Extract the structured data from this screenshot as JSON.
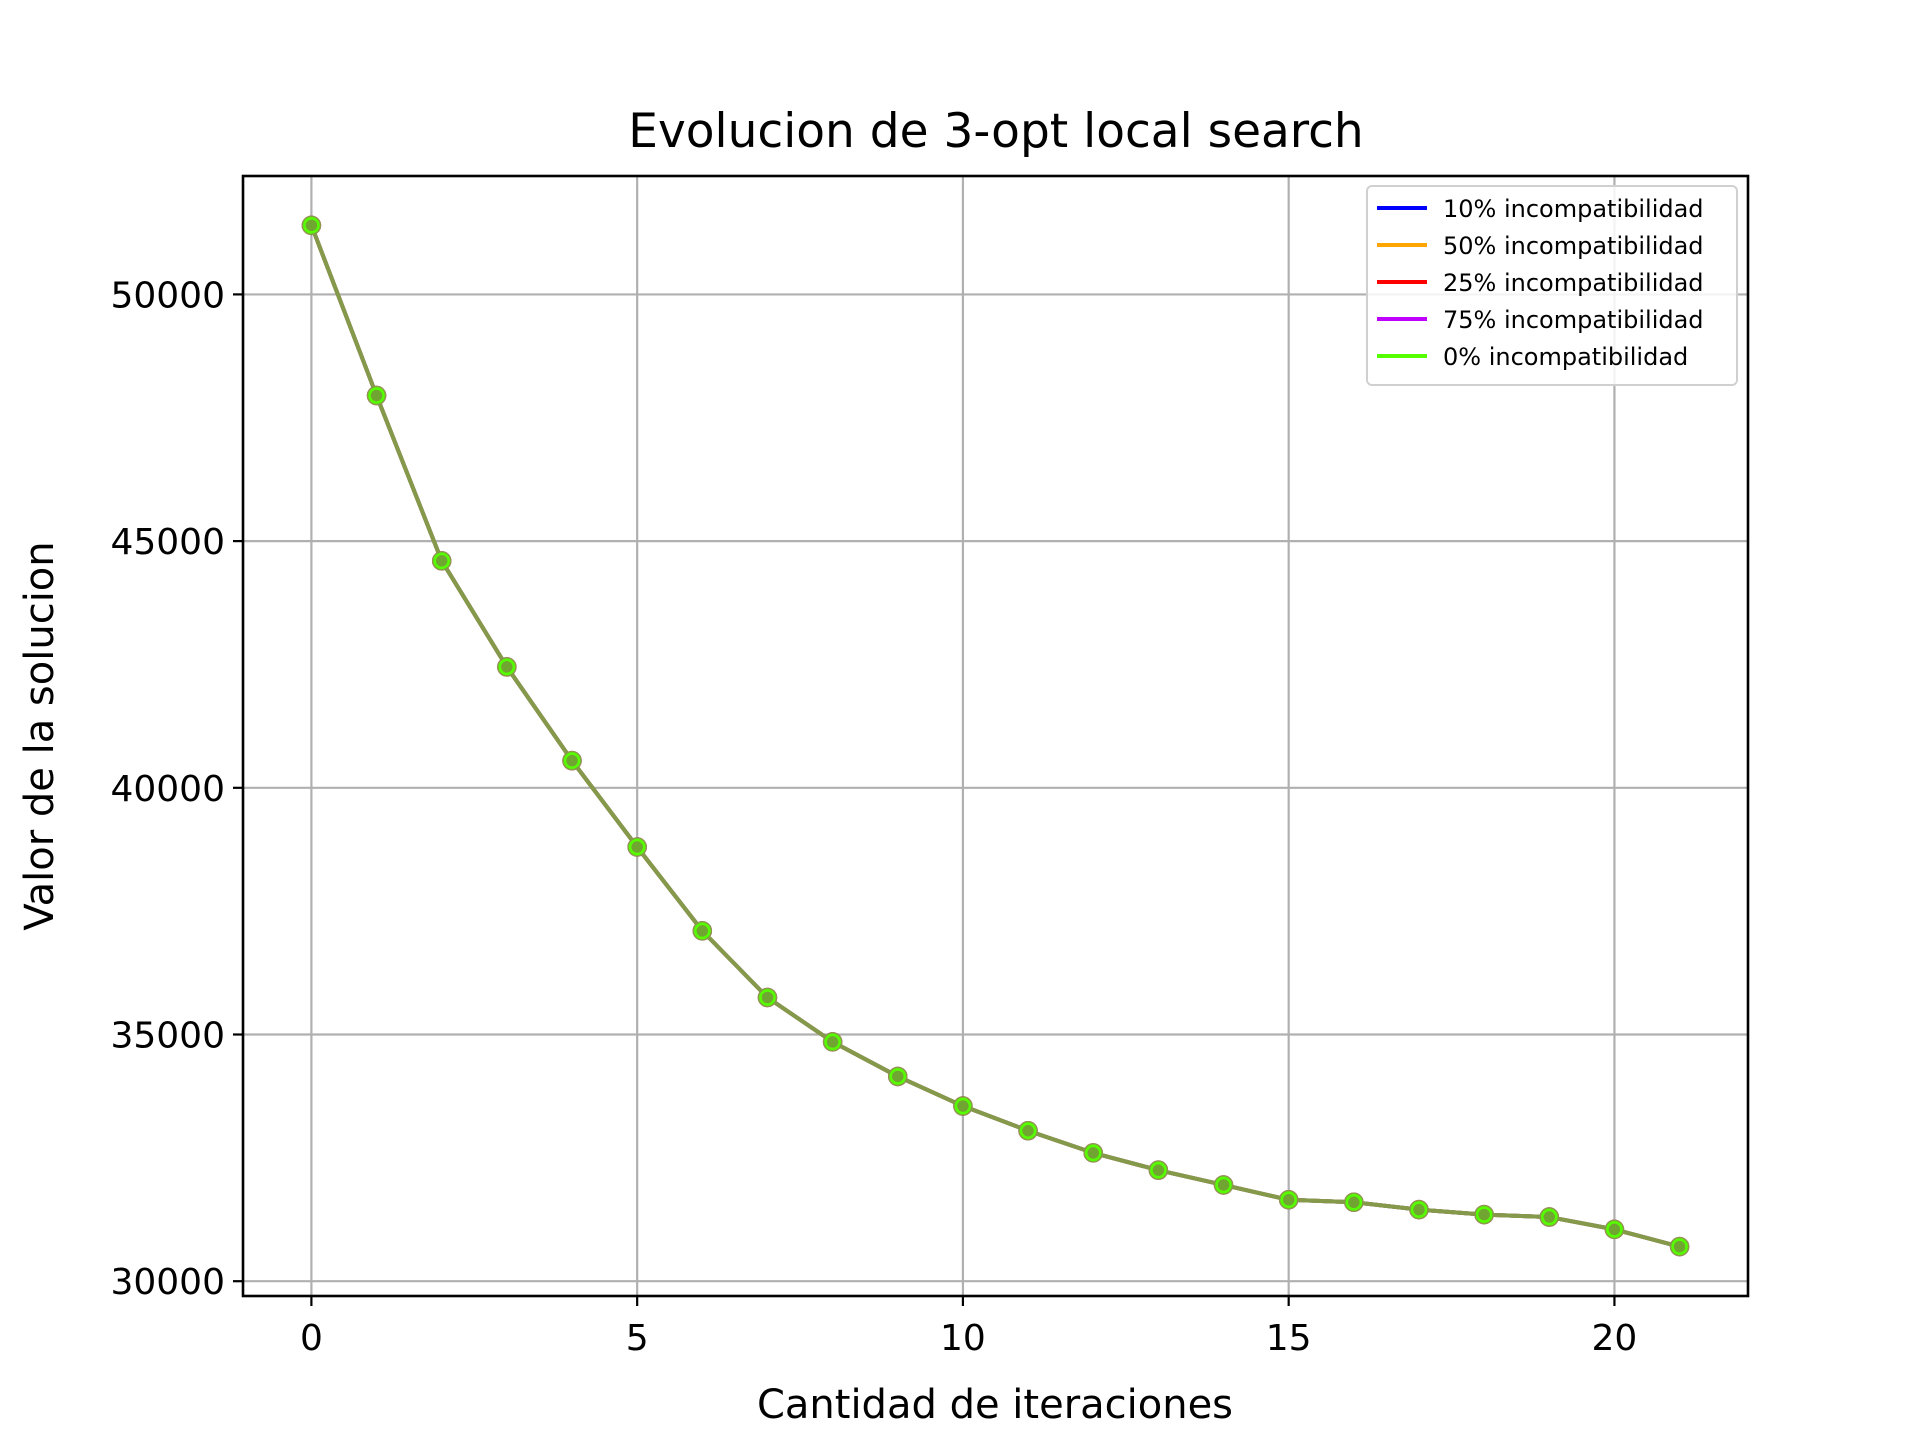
{
  "chart_data": {
    "type": "line",
    "title": "Evolucion de 3-opt local search",
    "xlabel": "Cantidad de iteraciones",
    "ylabel": "Valor de la solucion",
    "xlim": [
      -1.05,
      22.05
    ],
    "ylim": [
      29700,
      52400
    ],
    "xticks": [
      0,
      5,
      10,
      15,
      20
    ],
    "yticks": [
      30000,
      35000,
      40000,
      45000,
      50000
    ],
    "grid": true,
    "legend_position": "top-right",
    "x": [
      0,
      1,
      2,
      3,
      4,
      5,
      6,
      7,
      8,
      9,
      10,
      11,
      12,
      13,
      14,
      15,
      16,
      17,
      18,
      19,
      20,
      21
    ],
    "series": [
      {
        "name": "10% incompatibilidad",
        "color": "#0000ff",
        "values": [
          51400,
          47950,
          44600,
          42450,
          40550,
          38800,
          37100,
          35750,
          34850,
          34150,
          33550,
          33050,
          32600,
          32250,
          31950,
          31650,
          31600,
          31450,
          31350,
          31300,
          31050,
          30700
        ]
      },
      {
        "name": "50% incompatibilidad",
        "color": "#ffa500",
        "values": [
          51400,
          47950,
          44600,
          42450,
          40550,
          38800,
          37100,
          35750,
          34850,
          34150,
          33550,
          33050,
          32600,
          32250,
          31950,
          31650,
          31600,
          31450,
          31350,
          31300,
          31050,
          30700
        ]
      },
      {
        "name": "25% incompatibilidad",
        "color": "#ff0000",
        "values": [
          51400,
          47950,
          44600,
          42450,
          40550,
          38800,
          37100,
          35750,
          34850,
          34150,
          33550,
          33050,
          32600,
          32250,
          31950,
          31650,
          31600,
          31450,
          31350,
          31300,
          31050,
          30700
        ]
      },
      {
        "name": "75% incompatibilidad",
        "color": "#bf00ff",
        "values": [
          51400,
          47950,
          44600,
          42450,
          40550,
          38800,
          37100,
          35750,
          34850,
          34150,
          33550,
          33050,
          32600,
          32250,
          31950,
          31650,
          31600,
          31450,
          31350,
          31300,
          31050,
          30700
        ]
      },
      {
        "name": "0% incompatibilidad",
        "color": "#55ff00",
        "values": [
          51400,
          47950,
          44600,
          42450,
          40550,
          38800,
          37100,
          35750,
          34850,
          34150,
          33550,
          33050,
          32600,
          32250,
          31950,
          31650,
          31600,
          31450,
          31350,
          31300,
          31050,
          30700
        ]
      }
    ],
    "line_color_visible": "#84994a"
  }
}
